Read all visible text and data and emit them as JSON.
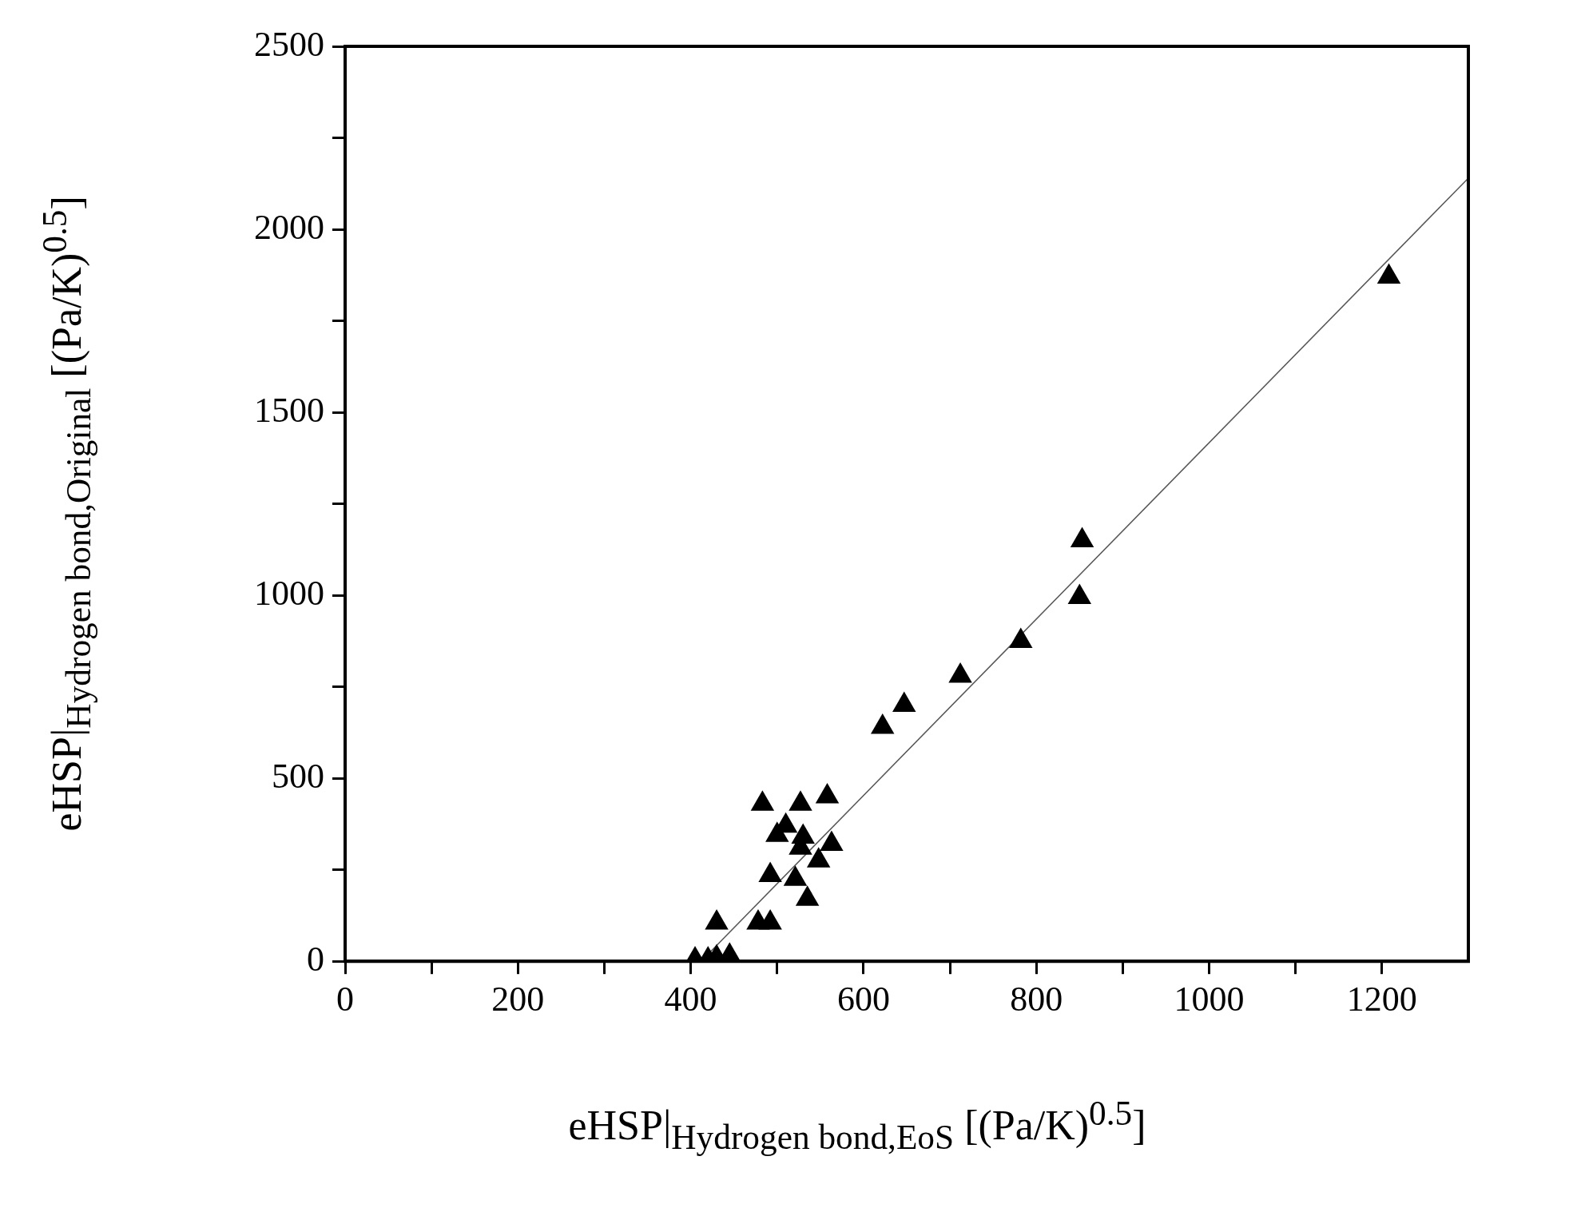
{
  "chart_data": {
    "type": "scatter",
    "xlabel": "eHSP|$_{Hydrogen bond,EoS}$ [(Pa/K)$^{0.5}$]",
    "ylabel": "eHSP|$_{Hydrogen bond,Original}$ [(Pa/K)$^{0.5}$]",
    "xlim": [
      0,
      1300
    ],
    "ylim": [
      0,
      2500
    ],
    "xticks": [
      0,
      {
        "value": 100,
        "label": null
      },
      200,
      {
        "value": 300,
        "label": null
      },
      400,
      {
        "value": 500,
        "label": null
      },
      600,
      {
        "value": 700,
        "label": null
      },
      800,
      {
        "value": 900,
        "label": null
      },
      1000,
      {
        "value": 1100,
        "label": null
      },
      1200
    ],
    "yticks": [
      0,
      {
        "value": 250,
        "label": null
      },
      500,
      {
        "value": 750,
        "label": null
      },
      1000,
      {
        "value": 1250,
        "label": null
      },
      1500,
      {
        "value": 1750,
        "label": null
      },
      2000,
      {
        "value": 2250,
        "label": null
      },
      2500
    ],
    "grid": false,
    "legend": false,
    "series": [
      {
        "color": "#000000",
        "marker": "triangle",
        "x": [
          1208,
          853,
          850,
          782,
          712,
          647,
          622,
          558,
          527,
          483,
          510,
          500,
          530,
          527,
          563,
          548,
          492,
          521,
          535,
          430,
          478,
          492,
          405,
          420,
          430,
          445
        ],
        "values": [
          1870,
          1150,
          995,
          875,
          780,
          700,
          640,
          450,
          430,
          430,
          370,
          345,
          340,
          310,
          320,
          275,
          235,
          225,
          170,
          105,
          105,
          105,
          5,
          5,
          10,
          15
        ]
      },
      {
        "type": "line",
        "color": "#555555",
        "marker": "none",
        "line_style": "solid",
        "x": [
          412,
          1300
        ],
        "values": [
          0,
          2140
        ]
      }
    ]
  }
}
